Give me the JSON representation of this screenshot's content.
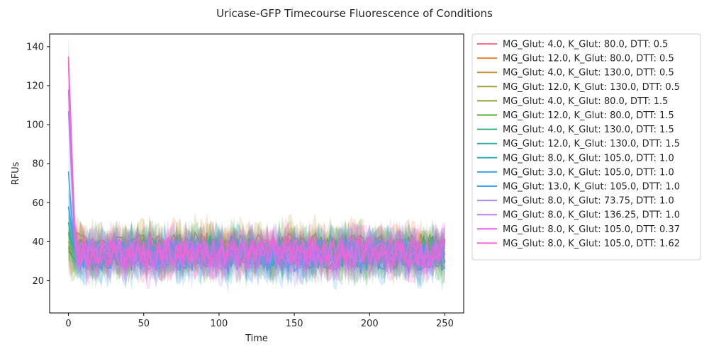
{
  "chart_data": {
    "type": "line",
    "title": "Uricase-GFP Timecourse Fluorescence of Conditions",
    "xlabel": "Time",
    "ylabel": "RFUs",
    "xlim": [
      -12.5,
      262.5
    ],
    "ylim": [
      3.5,
      146.5
    ],
    "xticks": [
      0,
      50,
      100,
      150,
      200,
      250
    ],
    "yticks": [
      20,
      40,
      60,
      80,
      100,
      120,
      140
    ],
    "grid": false,
    "legend_position": "outside-right",
    "x_range": [
      0,
      250
    ],
    "noise_band": [
      22,
      48
    ],
    "series": [
      {
        "name": "MG_Glut: 4.0, K_Glut: 80.0, DTT: 0.5",
        "color": "#f77189",
        "start": 35,
        "mean": 34
      },
      {
        "name": "MG_Glut: 12.0, K_Glut: 80.0, DTT: 0.5",
        "color": "#e58432",
        "start": 38,
        "mean": 36
      },
      {
        "name": "MG_Glut: 4.0, K_Glut: 130.0, DTT: 0.5",
        "color": "#c39532",
        "start": 45,
        "mean": 37
      },
      {
        "name": "MG_Glut: 12.0, K_Glut: 130.0, DTT: 0.5",
        "color": "#a79f31",
        "start": 42,
        "mean": 36
      },
      {
        "name": "MG_Glut: 4.0, K_Glut: 80.0, DTT: 1.5",
        "color": "#86a831",
        "start": 40,
        "mean": 35
      },
      {
        "name": "MG_Glut: 12.0, K_Glut: 80.0, DTT: 1.5",
        "color": "#4fb031",
        "start": 37,
        "mean": 34
      },
      {
        "name": "MG_Glut: 4.0, K_Glut: 130.0, DTT: 1.5",
        "color": "#33b07a",
        "start": 44,
        "mean": 35
      },
      {
        "name": "MG_Glut: 12.0, K_Glut: 130.0, DTT: 1.5",
        "color": "#35ad9c",
        "start": 50,
        "mean": 34
      },
      {
        "name": "MG_Glut: 8.0, K_Glut: 105.0, DTT: 1.0",
        "color": "#37abb5",
        "start": 58,
        "mean": 33
      },
      {
        "name": "MG_Glut: 3.0, K_Glut: 105.0, DTT: 1.0",
        "color": "#3ba3ec",
        "start": 76,
        "mean": 33
      },
      {
        "name": "MG_Glut: 13.0, K_Glut: 105.0, DTT: 1.0",
        "color": "#3ba3ec",
        "start": 58,
        "mean": 32
      },
      {
        "name": "MG_Glut: 8.0, K_Glut: 73.75, DTT: 1.0",
        "color": "#a48cf4",
        "start": 107,
        "mean": 33
      },
      {
        "name": "MG_Glut: 8.0, K_Glut: 136.25, DTT: 1.0",
        "color": "#cc7af4",
        "start": 118,
        "mean": 33
      },
      {
        "name": "MG_Glut: 8.0, K_Glut: 105.0, DTT: 0.37",
        "color": "#f45cf2",
        "start": 132,
        "mean": 34
      },
      {
        "name": "MG_Glut: 8.0, K_Glut: 105.0, DTT: 1.62",
        "color": "#f565cc",
        "start": 135,
        "mean": 35
      }
    ]
  }
}
